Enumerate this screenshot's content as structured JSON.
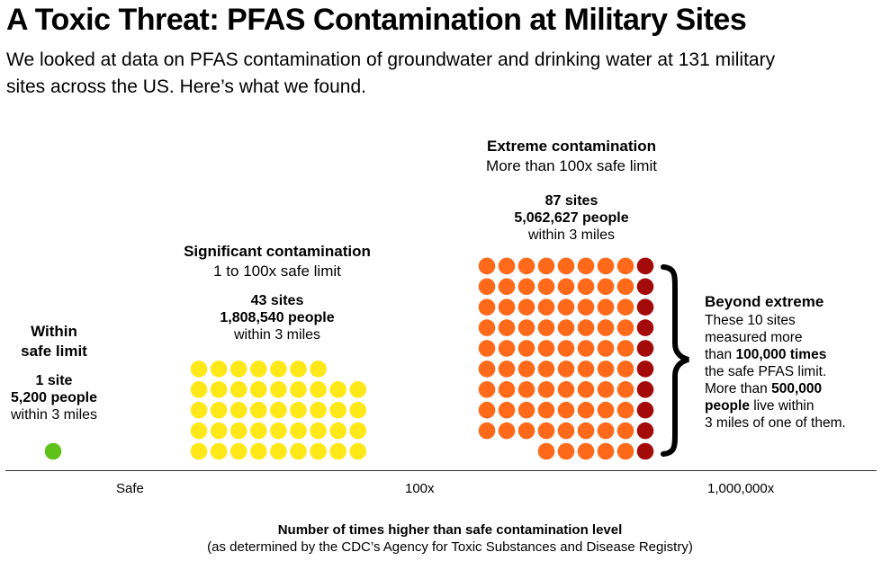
{
  "title": "A Toxic Threat: PFAS Contamination at Military Sites",
  "subtitle": "We looked at data on PFAS contamination of groundwater and drinking water at 131 military sites across the US. Here’s what we found.",
  "groups": {
    "safe": {
      "heading_1": "Within",
      "heading_2": "safe limit",
      "sites": "1 site",
      "people": "5,200 people",
      "radius": "within 3 miles"
    },
    "significant": {
      "heading": "Significant contamination",
      "range": "1 to 100x safe limit",
      "sites": "43 sites",
      "people": "1,808,540 people",
      "radius": "within 3 miles"
    },
    "extreme": {
      "heading": "Extreme contamination",
      "range": "More than 100x safe limit",
      "sites": "87 sites",
      "people": "5,062,627 people",
      "radius": "within 3 miles"
    }
  },
  "beyond": {
    "heading": "Beyond extreme",
    "line1": "These 10 sites",
    "line2": "measured more",
    "line3_pre": "than ",
    "line3_bold": "100,000 times",
    "line4": "the safe PFAS limit.",
    "line5_pre": "More than ",
    "line5_bold": "500,000",
    "line6_bold": "people",
    "line6_post": " live within",
    "line7": "3 miles of one of them."
  },
  "axis": {
    "ticks": [
      "Safe",
      "100x",
      "1,000,000x"
    ],
    "title": "Number of times higher than safe contamination level",
    "subtitle": "(as determined by the CDC’s Agency for Toxic Substances and Disease Registry)"
  },
  "colors": {
    "safe": "#5fc219",
    "significant": "#ffe817",
    "extreme": "#ff6a1a",
    "beyond": "#a50a0a"
  },
  "chart_data": {
    "type": "waffle",
    "unit": "site",
    "categories": [
      "Within safe limit",
      "Significant contamination",
      "Extreme contamination"
    ],
    "values": [
      1,
      43,
      87
    ],
    "people": [
      5200,
      1808540,
      5062627
    ],
    "beyond_extreme_sites": 10,
    "x_ticks": [
      "Safe",
      "100x",
      "1,000,000x"
    ]
  }
}
